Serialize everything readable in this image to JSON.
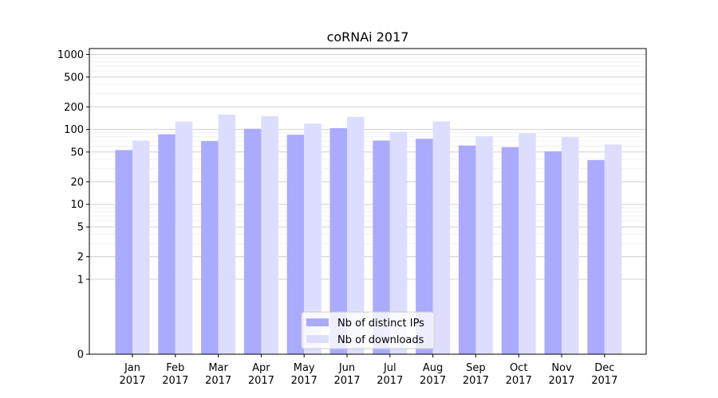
{
  "chart_data": {
    "type": "bar",
    "title": "coRNAi 2017",
    "xlabel": "",
    "ylabel": "",
    "y_scale": "symlog",
    "ylim": [
      0,
      1200
    ],
    "y_ticks": [
      0,
      1,
      2,
      5,
      10,
      20,
      50,
      100,
      200,
      500,
      1000
    ],
    "y_tick_labels": [
      "0",
      "1",
      "2",
      "5",
      "10",
      "20",
      "50",
      "100",
      "200",
      "500",
      "1000"
    ],
    "grid": "y",
    "legend_position": "bottom-center",
    "categories": [
      [
        "Jan",
        "2017"
      ],
      [
        "Feb",
        "2017"
      ],
      [
        "Mar",
        "2017"
      ],
      [
        "Apr",
        "2017"
      ],
      [
        "May",
        "2017"
      ],
      [
        "Jun",
        "2017"
      ],
      [
        "Jul",
        "2017"
      ],
      [
        "Aug",
        "2017"
      ],
      [
        "Sep",
        "2017"
      ],
      [
        "Oct",
        "2017"
      ],
      [
        "Nov",
        "2017"
      ],
      [
        "Dec",
        "2017"
      ]
    ],
    "series": [
      {
        "name": "Nb of distinct IPs",
        "color": "#aaaaff",
        "values": [
          53,
          86,
          70,
          102,
          85,
          104,
          71,
          75,
          61,
          58,
          51,
          39
        ]
      },
      {
        "name": "Nb of downloads",
        "color": "#ddddff",
        "values": [
          71,
          127,
          158,
          150,
          120,
          147,
          93,
          128,
          81,
          89,
          79,
          63
        ]
      }
    ]
  }
}
